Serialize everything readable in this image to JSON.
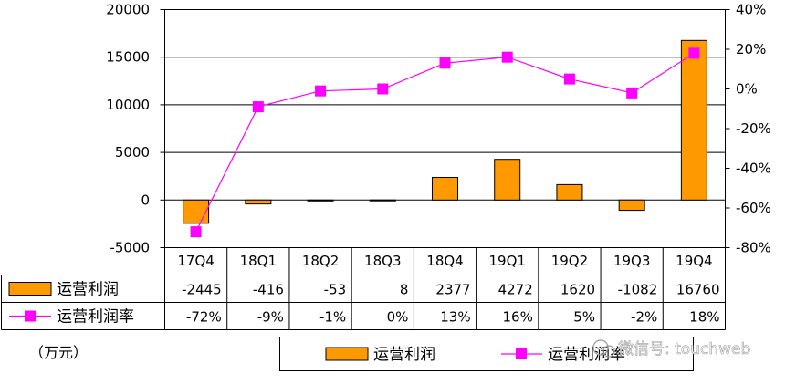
{
  "chart_data": {
    "type": "bar",
    "categories": [
      "17Q4",
      "18Q1",
      "18Q2",
      "18Q3",
      "18Q4",
      "19Q1",
      "19Q2",
      "19Q3",
      "19Q4"
    ],
    "series": [
      {
        "name": "运营利润",
        "kind": "bar",
        "axis": "left",
        "values": [
          -2445,
          -416,
          -53,
          8,
          2377,
          4272,
          1620,
          -1082,
          16760
        ],
        "color": "#ff9900"
      },
      {
        "name": "运营利润率",
        "kind": "line",
        "axis": "right",
        "values": [
          -72,
          -9,
          -1,
          0,
          13,
          16,
          5,
          -2,
          18
        ],
        "color": "#ff00ff"
      }
    ],
    "left_axis": {
      "min": -5000,
      "max": 20000,
      "ticks": [
        "-5000",
        "0",
        "5000",
        "10000",
        "15000",
        "20000"
      ]
    },
    "right_axis": {
      "min": -80,
      "max": 40,
      "ticks": [
        "-80%",
        "-60%",
        "-40%",
        "-20%",
        "0%",
        "20%",
        "40%"
      ]
    },
    "table": {
      "rows": [
        {
          "label": "运营利润",
          "cells": [
            "-2445",
            "-416",
            "-53",
            "8",
            "2377",
            "4272",
            "1620",
            "-1082",
            "16760"
          ]
        },
        {
          "label": "运营利润率",
          "cells": [
            "-72%",
            "-9%",
            "-1%",
            "0%",
            "13%",
            "16%",
            "5%",
            "-2%",
            "18%"
          ]
        }
      ]
    },
    "unit": "（万元）",
    "legend": [
      "运营利润",
      "运营利润率"
    ],
    "watermark": "微信号: touchweb",
    "grid": true
  }
}
